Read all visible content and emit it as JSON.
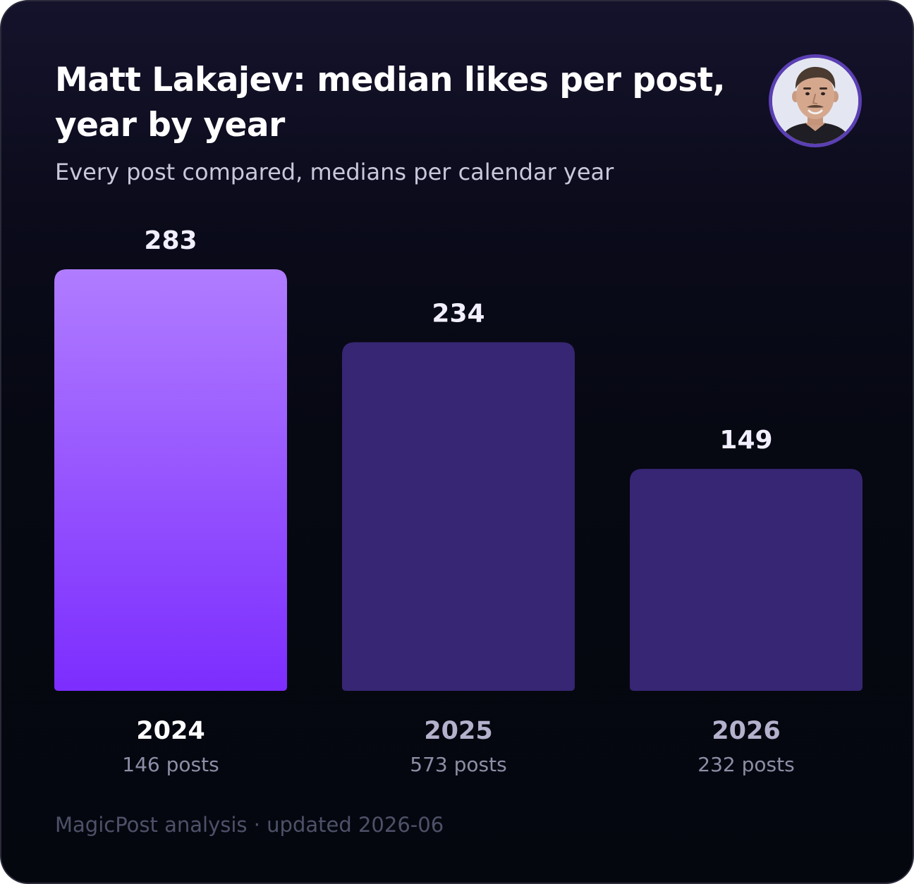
{
  "header": {
    "title": "Matt Lakajev: median likes per post, year by year",
    "subtitle": "Every post compared, medians per calendar year",
    "avatar_icon": "profile-photo"
  },
  "footer": {
    "text": "MagicPost analysis · updated 2026-06"
  },
  "colors": {
    "background": "#05070f",
    "highlight_bar_top": "#b07cff",
    "highlight_bar_bottom": "#7c2dfe",
    "bar": "#372673",
    "value_label": "#f1efff",
    "year_label_highlight": "#ffffff",
    "year_label": "#b3b1cc",
    "posts_label": "#8d8ea6"
  },
  "chart_data": {
    "type": "bar",
    "title": "Matt Lakajev: median likes per post, year by year",
    "subtitle": "Every post compared, medians per calendar year",
    "categories": [
      "2024",
      "2025",
      "2026"
    ],
    "values": [
      283,
      234,
      149
    ],
    "value_labels": [
      "283",
      "234",
      "149"
    ],
    "post_counts": [
      "146 posts",
      "573 posts",
      "232 posts"
    ],
    "highlight_index": 0,
    "ylim": [
      0,
      283
    ],
    "grid": false,
    "legend": "none"
  }
}
